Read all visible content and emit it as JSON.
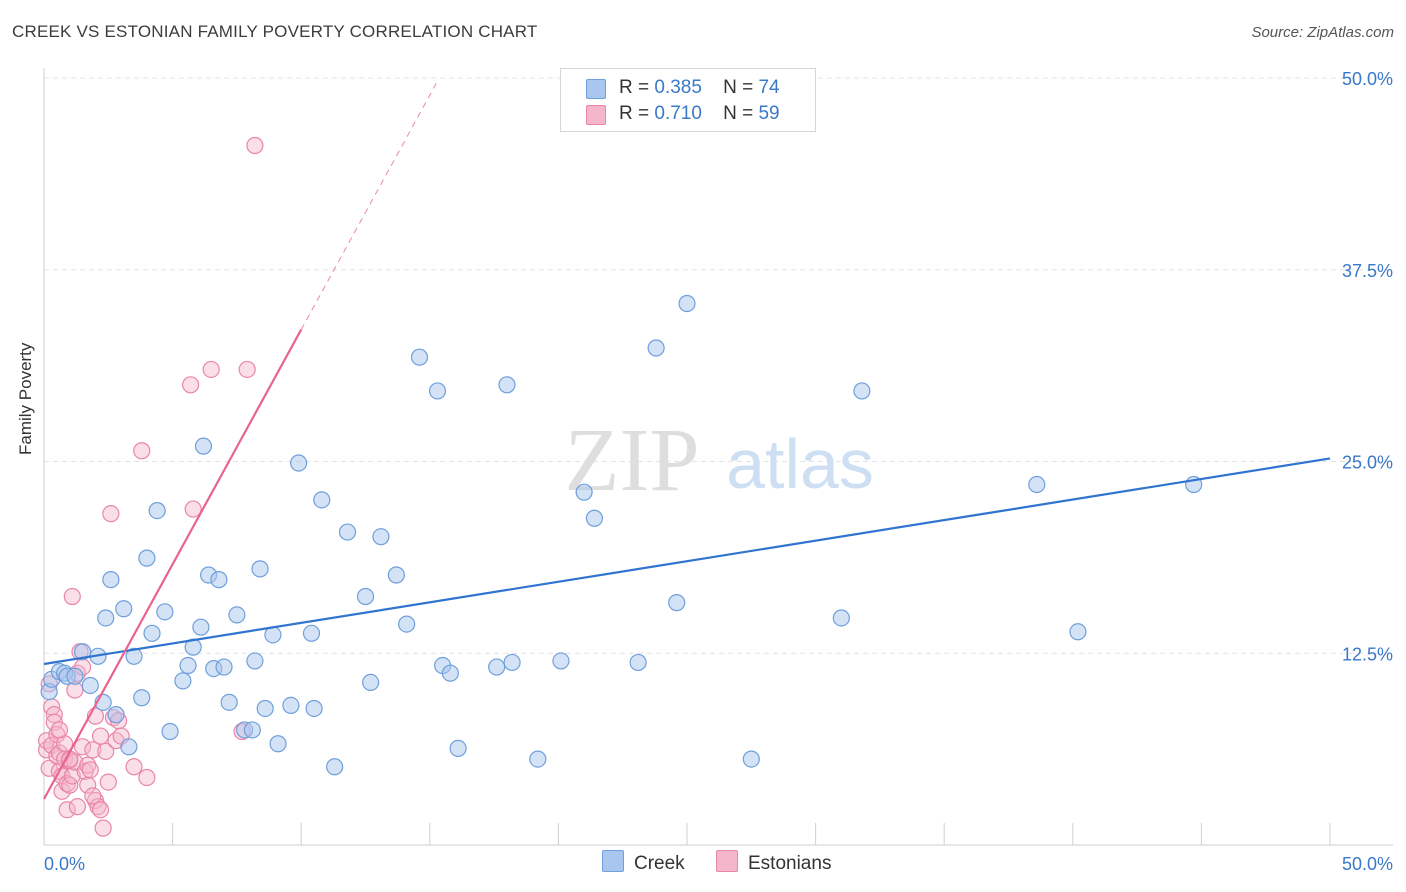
{
  "header": {
    "title": "CREEK VS ESTONIAN FAMILY POVERTY CORRELATION CHART",
    "source": "Source: ZipAtlas.com"
  },
  "colors": {
    "creek_fill": "#a9c6ee",
    "creek_stroke": "#6f9fdc",
    "creek_line": "#2f74d0",
    "estonian_fill": "#f5b6cb",
    "estonian_stroke": "#ea86a7",
    "estonian_line": "#e8638f",
    "axis_text": "#3a78c9",
    "grid": "#e3e3e3"
  },
  "legend": {
    "rows": [
      {
        "r_label": "R =",
        "r_value": "0.385",
        "n_label": "N =",
        "n_value": "74"
      },
      {
        "r_label": "R =",
        "r_value": "0.710",
        "n_label": "N =",
        "n_value": "59"
      }
    ],
    "bottom": [
      "Creek",
      "Estonians"
    ]
  },
  "watermark": {
    "zip": "ZIP",
    "atlas": "atlas"
  },
  "chart_data": {
    "type": "scatter",
    "title": "CREEK VS ESTONIAN FAMILY POVERTY CORRELATION CHART",
    "xlabel": "",
    "ylabel": "Family Poverty",
    "xlim": [
      0,
      50
    ],
    "ylim": [
      0,
      50
    ],
    "x_tick_labels": [
      "0.0%",
      "50.0%"
    ],
    "y_tick_labels": [
      "12.5%",
      "25.0%",
      "37.5%",
      "50.0%"
    ],
    "y_ticks": [
      12.5,
      25.0,
      37.5,
      50.0
    ],
    "grid": true,
    "legend_position": "top-center",
    "series": [
      {
        "name": "Creek",
        "R": 0.385,
        "N": 74,
        "trend": {
          "x": [
            0,
            50
          ],
          "y": [
            11.8,
            25.2
          ]
        },
        "points": [
          [
            0.2,
            10.0
          ],
          [
            0.3,
            10.8
          ],
          [
            0.6,
            11.3
          ],
          [
            0.8,
            11.2
          ],
          [
            0.9,
            11.0
          ],
          [
            1.2,
            11.0
          ],
          [
            1.5,
            12.6
          ],
          [
            1.8,
            10.4
          ],
          [
            2.1,
            12.3
          ],
          [
            2.3,
            9.3
          ],
          [
            2.4,
            14.8
          ],
          [
            2.6,
            17.3
          ],
          [
            2.8,
            8.5
          ],
          [
            3.1,
            15.4
          ],
          [
            3.3,
            6.4
          ],
          [
            3.5,
            12.3
          ],
          [
            3.8,
            9.6
          ],
          [
            4.0,
            18.7
          ],
          [
            4.2,
            13.8
          ],
          [
            4.4,
            21.8
          ],
          [
            4.7,
            15.2
          ],
          [
            4.9,
            7.4
          ],
          [
            5.4,
            10.7
          ],
          [
            5.6,
            11.7
          ],
          [
            5.8,
            12.9
          ],
          [
            6.1,
            14.2
          ],
          [
            6.2,
            26.0
          ],
          [
            6.4,
            17.6
          ],
          [
            6.6,
            11.5
          ],
          [
            6.8,
            17.3
          ],
          [
            7.0,
            11.6
          ],
          [
            7.2,
            9.3
          ],
          [
            7.5,
            15.0
          ],
          [
            7.8,
            7.5
          ],
          [
            8.1,
            7.5
          ],
          [
            8.2,
            12.0
          ],
          [
            8.4,
            18.0
          ],
          [
            8.6,
            8.9
          ],
          [
            8.9,
            13.7
          ],
          [
            9.1,
            6.6
          ],
          [
            9.6,
            9.1
          ],
          [
            9.9,
            24.9
          ],
          [
            10.4,
            13.8
          ],
          [
            10.5,
            8.9
          ],
          [
            10.8,
            22.5
          ],
          [
            11.3,
            5.1
          ],
          [
            11.8,
            20.4
          ],
          [
            12.5,
            16.2
          ],
          [
            12.7,
            10.6
          ],
          [
            13.1,
            20.1
          ],
          [
            13.7,
            17.6
          ],
          [
            14.1,
            14.4
          ],
          [
            14.6,
            31.8
          ],
          [
            15.3,
            29.6
          ],
          [
            15.5,
            11.7
          ],
          [
            15.8,
            11.2
          ],
          [
            16.1,
            6.3
          ],
          [
            17.6,
            11.6
          ],
          [
            18.0,
            30.0
          ],
          [
            18.2,
            11.9
          ],
          [
            19.2,
            5.6
          ],
          [
            20.1,
            12.0
          ],
          [
            21.0,
            23.0
          ],
          [
            21.4,
            21.3
          ],
          [
            23.1,
            11.9
          ],
          [
            23.8,
            32.4
          ],
          [
            24.6,
            15.8
          ],
          [
            25.0,
            35.3
          ],
          [
            27.5,
            5.6
          ],
          [
            31.0,
            14.8
          ],
          [
            31.8,
            29.6
          ],
          [
            38.6,
            23.5
          ],
          [
            40.2,
            13.9
          ],
          [
            44.7,
            23.5
          ]
        ]
      },
      {
        "name": "Estonians",
        "R": 0.71,
        "N": 59,
        "trend": {
          "x": [
            0,
            10
          ],
          "y": [
            3.0,
            33.6
          ]
        },
        "trend_dashed": {
          "x": [
            10,
            15.3
          ],
          "y": [
            33.6,
            49.8
          ]
        },
        "points": [
          [
            0.1,
            6.2
          ],
          [
            0.1,
            6.8
          ],
          [
            0.2,
            10.5
          ],
          [
            0.2,
            5.0
          ],
          [
            0.3,
            9.0
          ],
          [
            0.3,
            6.5
          ],
          [
            0.4,
            8.5
          ],
          [
            0.4,
            8.0
          ],
          [
            0.5,
            5.8
          ],
          [
            0.5,
            7.2
          ],
          [
            0.6,
            4.8
          ],
          [
            0.6,
            6.0
          ],
          [
            0.7,
            3.5
          ],
          [
            0.7,
            4.5
          ],
          [
            0.8,
            6.6
          ],
          [
            0.8,
            5.6
          ],
          [
            0.9,
            2.3
          ],
          [
            0.9,
            4.0
          ],
          [
            1.0,
            5.5
          ],
          [
            1.0,
            3.9
          ],
          [
            1.1,
            16.2
          ],
          [
            1.1,
            4.5
          ],
          [
            1.2,
            10.1
          ],
          [
            1.2,
            5.4
          ],
          [
            1.3,
            11.2
          ],
          [
            1.3,
            2.5
          ],
          [
            1.4,
            12.6
          ],
          [
            1.5,
            11.6
          ],
          [
            1.5,
            6.4
          ],
          [
            1.6,
            4.8
          ],
          [
            1.7,
            3.9
          ],
          [
            1.7,
            5.2
          ],
          [
            1.8,
            4.9
          ],
          [
            1.9,
            6.2
          ],
          [
            2.0,
            2.9
          ],
          [
            2.0,
            8.4
          ],
          [
            2.1,
            2.5
          ],
          [
            2.2,
            7.1
          ],
          [
            2.3,
            1.1
          ],
          [
            2.4,
            6.1
          ],
          [
            2.5,
            4.1
          ],
          [
            2.6,
            21.6
          ],
          [
            2.7,
            8.3
          ],
          [
            2.8,
            6.8
          ],
          [
            2.9,
            8.1
          ],
          [
            3.0,
            7.1
          ],
          [
            3.5,
            5.1
          ],
          [
            3.8,
            25.7
          ],
          [
            4.0,
            4.4
          ],
          [
            5.7,
            30.0
          ],
          [
            5.8,
            21.9
          ],
          [
            6.5,
            31.0
          ],
          [
            7.7,
            7.4
          ],
          [
            7.9,
            31.0
          ],
          [
            8.2,
            45.6
          ],
          [
            2.2,
            2.3
          ],
          [
            1.9,
            3.2
          ],
          [
            0.6,
            7.5
          ],
          [
            1.0,
            5.6
          ]
        ]
      }
    ]
  }
}
